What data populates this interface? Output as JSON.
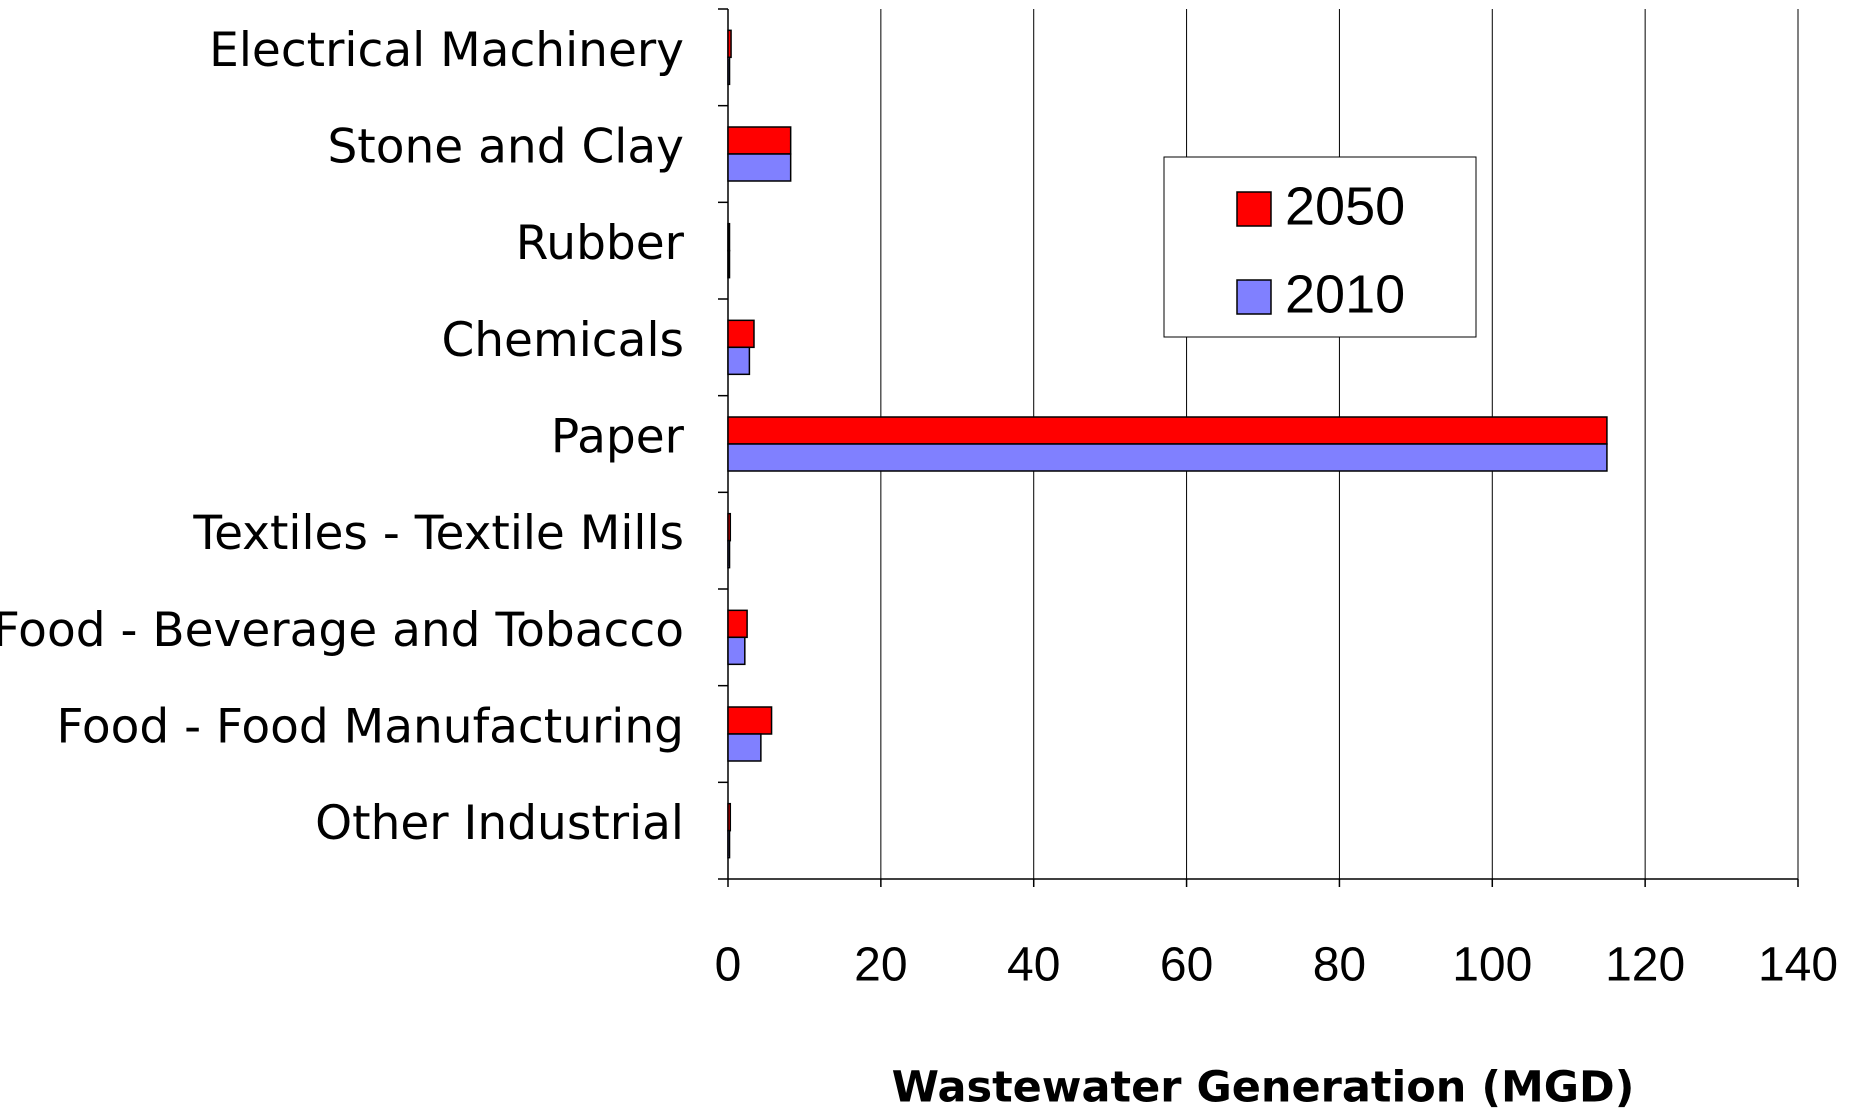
{
  "chart_data": {
    "type": "bar",
    "orientation": "horizontal",
    "categories": [
      "Electrical Machinery",
      "Stone and Clay",
      "Rubber",
      "Chemicals",
      "Paper",
      "Textiles - Textile Mills",
      "Food - Beverage and Tobacco",
      "Food - Food Manufacturing",
      "Other Industrial"
    ],
    "series": [
      {
        "name": "2050",
        "color": "#ff0000",
        "values": [
          0.4,
          8.2,
          0.1,
          3.4,
          115,
          0.3,
          2.5,
          5.7,
          0.3
        ]
      },
      {
        "name": "2010",
        "color": "#8080ff",
        "values": [
          0.2,
          8.2,
          0.1,
          2.8,
          115,
          0.2,
          2.2,
          4.3,
          0.2
        ]
      }
    ],
    "x_label": "Wastewater Generation (MGD)",
    "xlim": [
      0,
      140
    ],
    "xticks": [
      0,
      20,
      40,
      60,
      80,
      100,
      120,
      140
    ],
    "grid": true,
    "legend": "upper-right"
  }
}
